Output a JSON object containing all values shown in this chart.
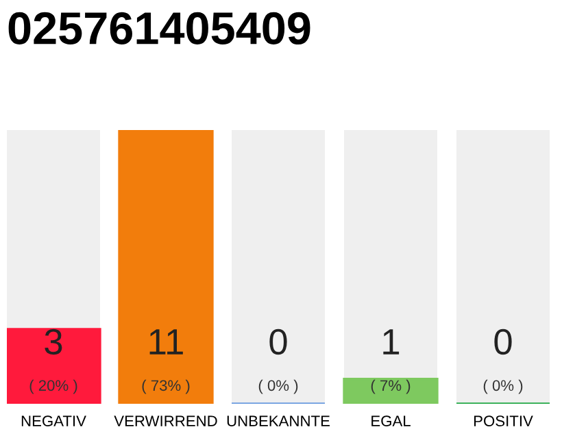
{
  "chart_data": {
    "type": "bar",
    "title": "025761405409",
    "categories": [
      "NEGATIV",
      "VERWIRREND",
      "UNBEKANNTE",
      "EGAL",
      "POSITIV"
    ],
    "values": [
      3,
      11,
      0,
      1,
      0
    ],
    "colors": [
      "#ff1a3c",
      "#f27d0c",
      "#6a9be0",
      "#7ec95f",
      "#22a845"
    ],
    "data_labels": true,
    "annotations": [
      "( 20% )",
      "( 73% )",
      "( 0% )",
      "( 7% )",
      "( 0% )"
    ],
    "grid": false,
    "legend": false
  }
}
